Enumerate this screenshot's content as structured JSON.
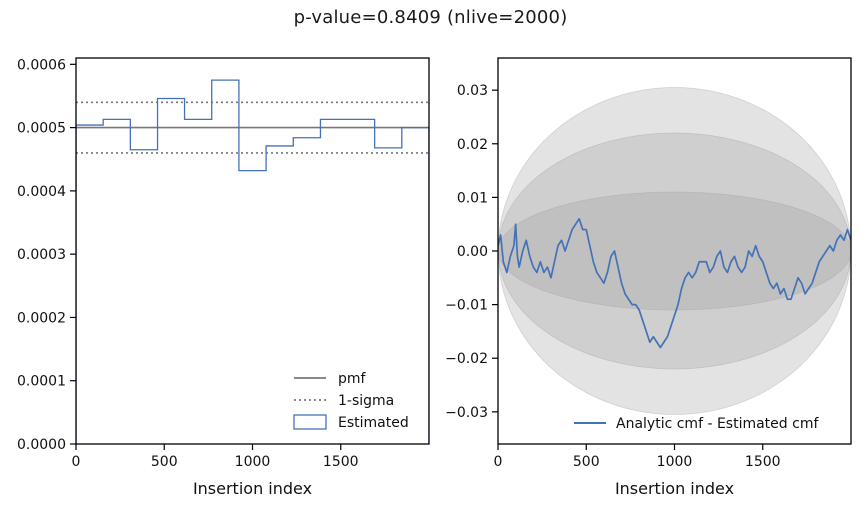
{
  "figure": {
    "suptitle": "p-value=0.8409 (nlive=2000)"
  },
  "chart_data": [
    {
      "type": "line",
      "panel": "left",
      "title": "",
      "xlabel": "Insertion index",
      "ylabel": "",
      "xlim": [
        0,
        2000
      ],
      "ylim": [
        0,
        0.00061
      ],
      "xticks": [
        0,
        500,
        1000,
        1500
      ],
      "xtick_labels": [
        "0",
        "500",
        "1000",
        "1500"
      ],
      "yticks": [
        0,
        0.0001,
        0.0002,
        0.0003,
        0.0004,
        0.0005,
        0.0006
      ],
      "ytick_labels": [
        "0.0000",
        "0.0001",
        "0.0002",
        "0.0003",
        "0.0004",
        "0.0005",
        "0.0006"
      ],
      "grid": false,
      "legend": "lower-right",
      "pmf": 0.0005,
      "sigma_upper": 0.00054,
      "sigma_lower": 0.00046,
      "bin_edges": [
        0,
        154,
        308,
        462,
        615,
        769,
        923,
        1077,
        1231,
        1385,
        1538,
        1692,
        1846,
        2000
      ],
      "estimated": [
        0.000504,
        0.000513,
        0.000465,
        0.000546,
        0.000513,
        0.000575,
        0.000432,
        0.000471,
        0.000484,
        0.000513,
        0.000513,
        0.000468,
        0.0005
      ],
      "series": [
        {
          "name": "pmf",
          "color": "#777777",
          "style": "solid"
        },
        {
          "name": "1-sigma",
          "color": "#777777",
          "style": "dotted"
        },
        {
          "name": "Estimated",
          "color": "#4472b8",
          "style": "step"
        }
      ]
    },
    {
      "type": "line",
      "panel": "right",
      "title": "",
      "xlabel": "Insertion index",
      "ylabel": "",
      "xlim": [
        0,
        2000
      ],
      "ylim": [
        -0.036,
        0.036
      ],
      "xticks": [
        0,
        500,
        1000,
        1500
      ],
      "xtick_labels": [
        "0",
        "500",
        "1000",
        "1500"
      ],
      "yticks": [
        -0.03,
        -0.02,
        -0.01,
        0.0,
        0.01,
        0.02,
        0.03
      ],
      "ytick_labels": [
        "−0.03",
        "−0.02",
        "−0.01",
        "0.00",
        "0.01",
        "0.02",
        "0.03"
      ],
      "grid": false,
      "legend": "lower-right",
      "bands": [
        {
          "sigma": 3,
          "peak": 0.0305
        },
        {
          "sigma": 2,
          "peak": 0.022
        },
        {
          "sigma": 1,
          "peak": 0.011
        }
      ],
      "series": [
        {
          "name": "Analytic cmf - Estimated cmf",
          "color": "#4472b8",
          "x": [
            0,
            15,
            30,
            50,
            70,
            90,
            100,
            110,
            120,
            140,
            160,
            180,
            200,
            220,
            240,
            260,
            280,
            300,
            320,
            340,
            360,
            380,
            400,
            420,
            440,
            460,
            480,
            500,
            520,
            540,
            560,
            580,
            600,
            620,
            640,
            660,
            680,
            700,
            720,
            740,
            760,
            780,
            800,
            820,
            840,
            860,
            880,
            900,
            920,
            940,
            960,
            980,
            1000,
            1020,
            1040,
            1060,
            1080,
            1100,
            1120,
            1140,
            1160,
            1180,
            1200,
            1220,
            1240,
            1260,
            1280,
            1300,
            1320,
            1340,
            1360,
            1380,
            1400,
            1420,
            1440,
            1460,
            1480,
            1500,
            1520,
            1540,
            1560,
            1580,
            1600,
            1620,
            1640,
            1660,
            1680,
            1700,
            1720,
            1740,
            1760,
            1780,
            1800,
            1820,
            1840,
            1860,
            1880,
            1900,
            1920,
            1940,
            1960,
            1980,
            2000
          ],
          "y": [
            0.001,
            0.003,
            -0.002,
            -0.004,
            -0.001,
            0.001,
            0.005,
            -0.001,
            -0.003,
            0.0,
            0.002,
            -0.001,
            -0.003,
            -0.004,
            -0.002,
            -0.004,
            -0.003,
            -0.005,
            -0.002,
            0.001,
            0.002,
            0.0,
            0.002,
            0.004,
            0.005,
            0.006,
            0.004,
            0.004,
            0.001,
            -0.002,
            -0.004,
            -0.005,
            -0.006,
            -0.004,
            -0.001,
            0.0,
            -0.003,
            -0.006,
            -0.008,
            -0.009,
            -0.01,
            -0.01,
            -0.011,
            -0.013,
            -0.015,
            -0.017,
            -0.016,
            -0.017,
            -0.018,
            -0.017,
            -0.016,
            -0.014,
            -0.012,
            -0.01,
            -0.007,
            -0.005,
            -0.004,
            -0.005,
            -0.004,
            -0.002,
            -0.002,
            -0.002,
            -0.004,
            -0.003,
            -0.001,
            0.0,
            -0.003,
            -0.004,
            -0.002,
            -0.001,
            -0.003,
            -0.004,
            -0.003,
            0.0,
            -0.001,
            0.001,
            -0.001,
            -0.002,
            -0.004,
            -0.006,
            -0.007,
            -0.006,
            -0.008,
            -0.007,
            -0.009,
            -0.009,
            -0.007,
            -0.005,
            -0.006,
            -0.008,
            -0.007,
            -0.006,
            -0.004,
            -0.002,
            -0.001,
            0.0,
            0.001,
            0.0,
            0.002,
            0.003,
            0.002,
            0.004,
            0.002
          ]
        }
      ]
    }
  ]
}
